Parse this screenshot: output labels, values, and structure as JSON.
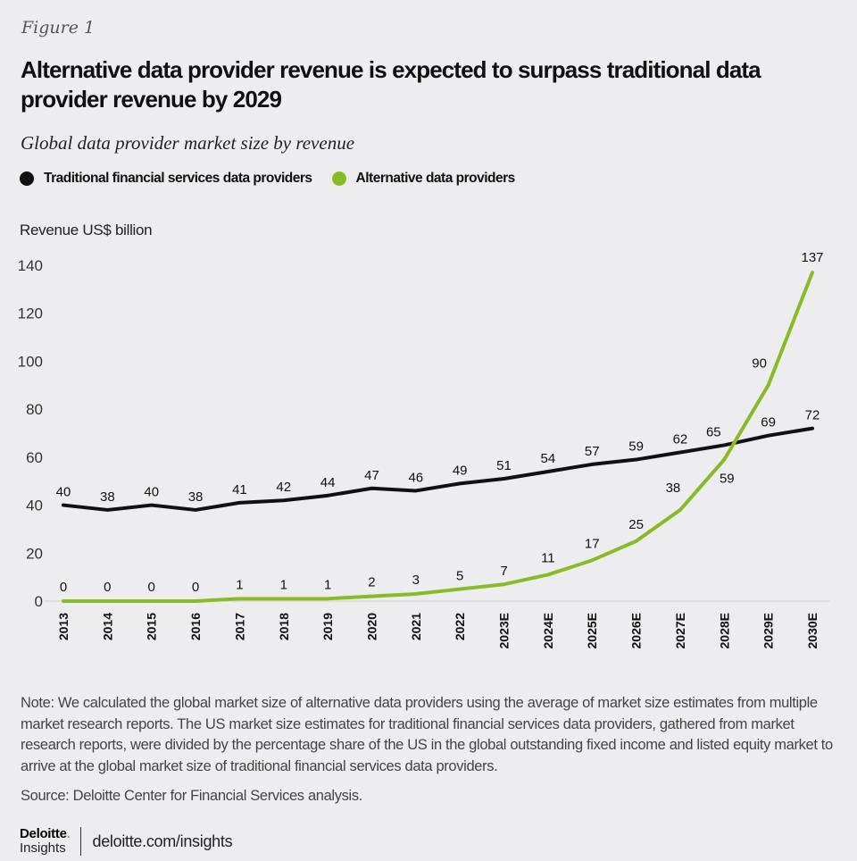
{
  "figure_label": "Figure 1",
  "title": "Alternative data provider revenue is expected to surpass traditional data provider revenue by 2029",
  "subtitle": "Global data provider market size by revenue",
  "legend": [
    {
      "label": "Traditional financial services data providers",
      "color": "#111111"
    },
    {
      "label": "Alternative data providers",
      "color": "#86bc25"
    }
  ],
  "chart_data": {
    "type": "line",
    "title": "Alternative data provider revenue is expected to surpass traditional data provider revenue by 2029",
    "subtitle": "Global data provider market size by revenue",
    "xlabel": "",
    "ylabel": "Revenue US$ billion",
    "ylim": [
      0,
      140
    ],
    "yticks": [
      0,
      20,
      40,
      60,
      80,
      100,
      120,
      140
    ],
    "grid": false,
    "legend_position": "top-left",
    "categories": [
      "2013",
      "2014",
      "2015",
      "2016",
      "2017",
      "2018",
      "2019",
      "2020",
      "2021",
      "2022",
      "2023E",
      "2024E",
      "2025E",
      "2026E",
      "2027E",
      "2028E",
      "2029E",
      "2030E"
    ],
    "series": [
      {
        "name": "Traditional financial services data providers",
        "color": "#111111",
        "values": [
          40,
          38,
          40,
          38,
          41,
          42,
          44,
          47,
          46,
          49,
          51,
          54,
          57,
          59,
          62,
          65,
          69,
          72
        ]
      },
      {
        "name": "Alternative data providers",
        "color": "#86bc25",
        "values": [
          0,
          0,
          0,
          0,
          1,
          1,
          1,
          2,
          3,
          5,
          7,
          11,
          17,
          25,
          38,
          59,
          90,
          137
        ]
      }
    ]
  },
  "note": "Note: We calculated the global market size of alternative data providers using the average of market size estimates from multiple market research reports. The US market size estimates for traditional financial services data providers, gathered from market research reports, were divided by the percentage share of the US in the global outstanding fixed income and listed equity market to arrive at the global market size of traditional financial services data providers.",
  "source": "Source: Deloitte Center for Financial Services analysis.",
  "footer": {
    "logo_main": "Deloitte",
    "logo_dot": ".",
    "logo_sub": "Insights",
    "url": "deloitte.com/insights"
  }
}
